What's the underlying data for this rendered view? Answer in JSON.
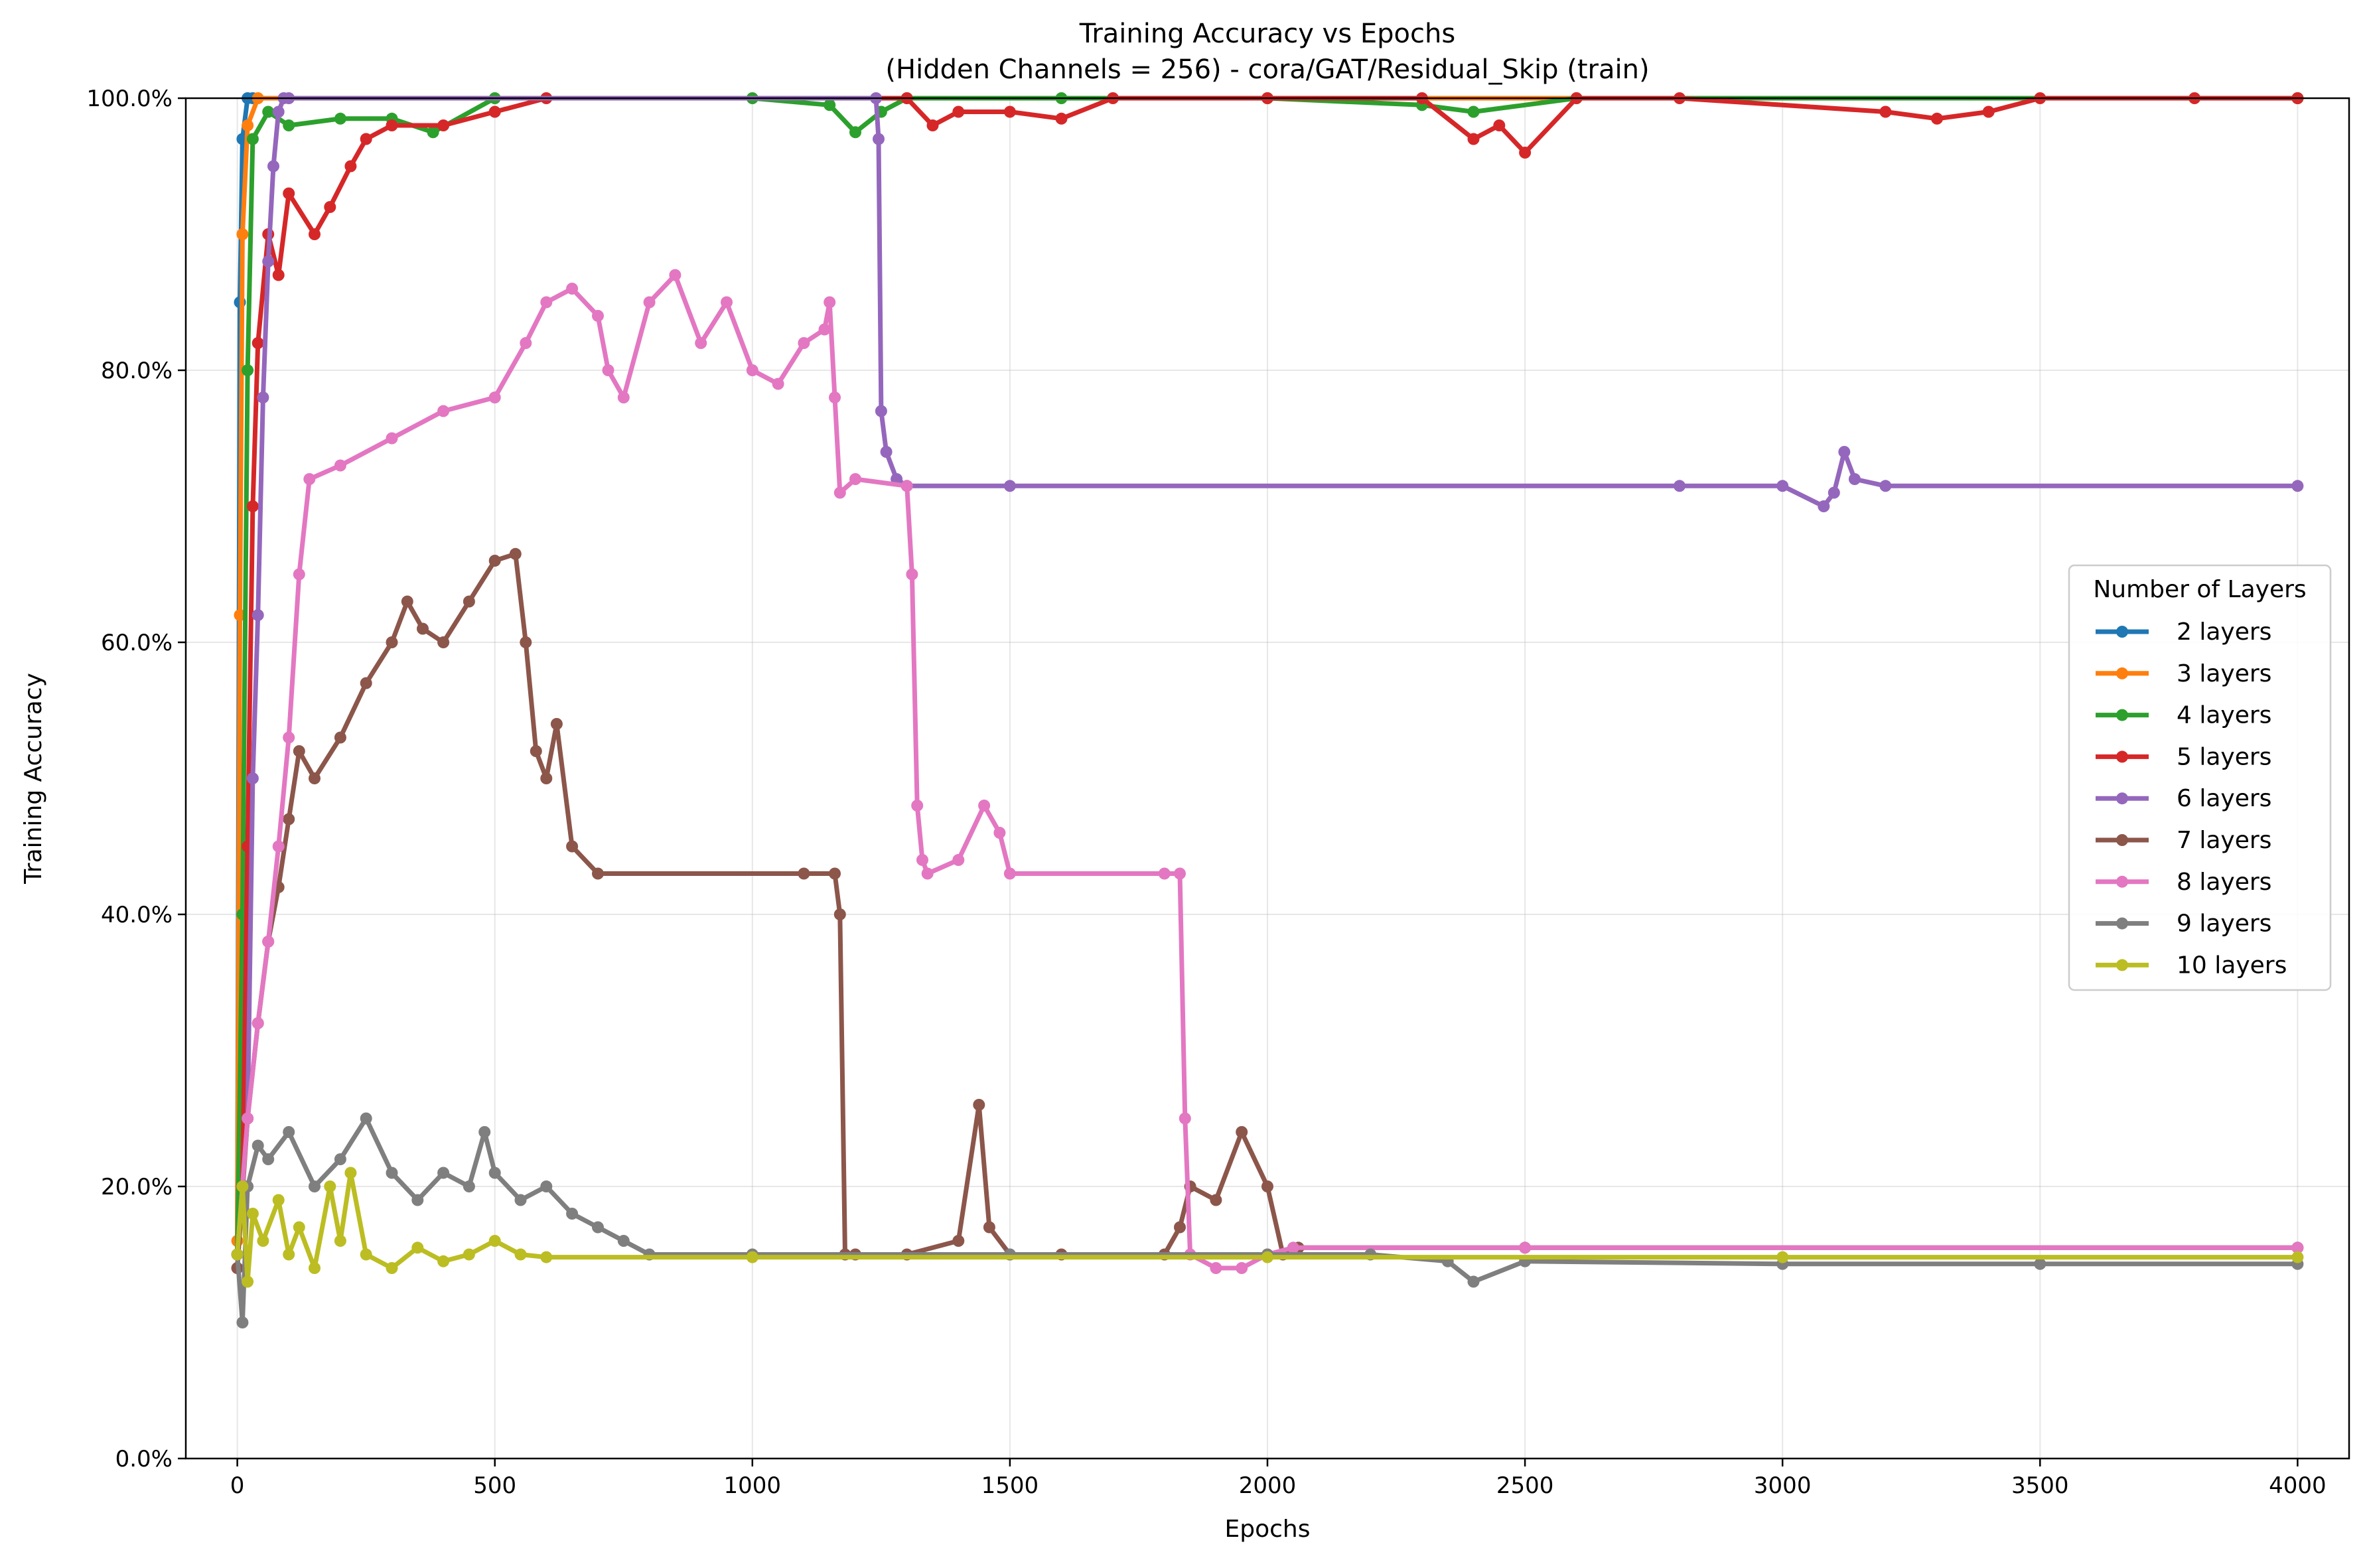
{
  "chart_data": {
    "type": "line",
    "title": "Training Accuracy vs Epochs",
    "subtitle": "(Hidden Channels = 256) - cora/GAT/Residual_Skip (train)",
    "xlabel": "Epochs",
    "ylabel": "Training Accuracy",
    "xlim": [
      -100,
      4100
    ],
    "ylim": [
      0,
      1.0
    ],
    "xticks": [
      0,
      500,
      1000,
      1500,
      2000,
      2500,
      3000,
      3500,
      4000
    ],
    "xtick_labels": [
      "0",
      "500",
      "1000",
      "1500",
      "2000",
      "2500",
      "3000",
      "3500",
      "4000"
    ],
    "yticks": [
      0,
      0.2,
      0.4,
      0.6,
      0.8,
      1.0
    ],
    "ytick_labels": [
      "0.0%",
      "20.0%",
      "40.0%",
      "60.0%",
      "80.0%",
      "100.0%"
    ],
    "grid": true,
    "legend": {
      "title": "Number of Layers",
      "placement": "center-right"
    },
    "series": [
      {
        "name": "2 layers",
        "color": "#1f77b4",
        "x": [
          0,
          5,
          10,
          20,
          30,
          4000
        ],
        "y": [
          0.15,
          0.85,
          0.97,
          1.0,
          1.0,
          1.0
        ]
      },
      {
        "name": "3 layers",
        "color": "#ff7f0e",
        "x": [
          0,
          5,
          10,
          20,
          40,
          4000
        ],
        "y": [
          0.16,
          0.62,
          0.9,
          0.98,
          1.0,
          1.0
        ]
      },
      {
        "name": "4 layers",
        "color": "#2ca02c",
        "x": [
          0,
          10,
          20,
          30,
          60,
          100,
          200,
          300,
          380,
          500,
          1000,
          1150,
          1200,
          1250,
          1300,
          1600,
          2000,
          2300,
          2400,
          2600,
          4000
        ],
        "y": [
          0.15,
          0.4,
          0.8,
          0.97,
          0.99,
          0.98,
          0.985,
          0.985,
          0.975,
          1.0,
          1.0,
          0.995,
          0.975,
          0.99,
          1.0,
          1.0,
          1.0,
          0.995,
          0.99,
          1.0,
          1.0
        ]
      },
      {
        "name": "5 layers",
        "color": "#d62728",
        "x": [
          0,
          10,
          20,
          30,
          40,
          60,
          80,
          100,
          150,
          180,
          220,
          250,
          300,
          400,
          500,
          600,
          1300,
          1350,
          1400,
          1500,
          1600,
          1700,
          2000,
          2300,
          2400,
          2450,
          2500,
          2600,
          2800,
          3200,
          3300,
          3400,
          3500,
          3800,
          4000
        ],
        "y": [
          0.14,
          0.2,
          0.45,
          0.7,
          0.82,
          0.9,
          0.87,
          0.93,
          0.9,
          0.92,
          0.95,
          0.97,
          0.98,
          0.98,
          0.99,
          1.0,
          1.0,
          0.98,
          0.99,
          0.99,
          0.985,
          1.0,
          1.0,
          1.0,
          0.97,
          0.98,
          0.96,
          1.0,
          1.0,
          0.99,
          0.985,
          0.99,
          1.0,
          1.0,
          1.0
        ]
      },
      {
        "name": "6 layers",
        "color": "#9467bd",
        "x": [
          0,
          20,
          30,
          40,
          50,
          60,
          70,
          80,
          90,
          100,
          1240,
          1245,
          1250,
          1260,
          1280,
          1300,
          1500,
          2800,
          3000,
          3080,
          3100,
          3120,
          3140,
          3200,
          4000
        ],
        "y": [
          0.15,
          0.25,
          0.5,
          0.62,
          0.78,
          0.88,
          0.95,
          0.99,
          1.0,
          1.0,
          1.0,
          0.97,
          0.77,
          0.74,
          0.72,
          0.715,
          0.715,
          0.715,
          0.715,
          0.7,
          0.71,
          0.74,
          0.72,
          0.715,
          0.715
        ]
      },
      {
        "name": "7 layers",
        "color": "#8c564b",
        "x": [
          0,
          20,
          40,
          60,
          80,
          100,
          120,
          150,
          200,
          250,
          300,
          330,
          360,
          400,
          450,
          500,
          540,
          560,
          580,
          600,
          620,
          650,
          700,
          1100,
          1160,
          1170,
          1180,
          1200,
          1300,
          1400,
          1440,
          1460,
          1500,
          1600,
          1800,
          1830,
          1850,
          1900,
          1950,
          2000,
          2030,
          2060,
          2500,
          4000
        ],
        "y": [
          0.14,
          0.25,
          0.32,
          0.38,
          0.42,
          0.47,
          0.52,
          0.5,
          0.53,
          0.57,
          0.6,
          0.63,
          0.61,
          0.6,
          0.63,
          0.66,
          0.665,
          0.6,
          0.52,
          0.5,
          0.54,
          0.45,
          0.43,
          0.43,
          0.43,
          0.4,
          0.15,
          0.15,
          0.15,
          0.16,
          0.26,
          0.17,
          0.15,
          0.15,
          0.15,
          0.17,
          0.2,
          0.19,
          0.24,
          0.2,
          0.15,
          0.155,
          0.155,
          0.155
        ]
      },
      {
        "name": "8 layers",
        "color": "#e377c2",
        "x": [
          0,
          20,
          40,
          60,
          80,
          100,
          120,
          140,
          200,
          300,
          400,
          500,
          560,
          600,
          650,
          700,
          720,
          750,
          800,
          850,
          900,
          950,
          1000,
          1050,
          1100,
          1140,
          1150,
          1160,
          1170,
          1200,
          1300,
          1310,
          1320,
          1330,
          1340,
          1400,
          1450,
          1480,
          1500,
          1800,
          1830,
          1840,
          1850,
          1900,
          1950,
          2000,
          2050,
          2500,
          4000
        ],
        "y": [
          0.15,
          0.25,
          0.32,
          0.38,
          0.45,
          0.53,
          0.65,
          0.72,
          0.73,
          0.75,
          0.77,
          0.78,
          0.82,
          0.85,
          0.86,
          0.84,
          0.8,
          0.78,
          0.85,
          0.87,
          0.82,
          0.85,
          0.8,
          0.79,
          0.82,
          0.83,
          0.85,
          0.78,
          0.71,
          0.72,
          0.715,
          0.65,
          0.48,
          0.44,
          0.43,
          0.44,
          0.48,
          0.46,
          0.43,
          0.43,
          0.43,
          0.25,
          0.15,
          0.14,
          0.14,
          0.15,
          0.155,
          0.155,
          0.155
        ]
      },
      {
        "name": "9 layers",
        "color": "#7f7f7f",
        "x": [
          0,
          10,
          20,
          40,
          60,
          100,
          150,
          200,
          250,
          300,
          350,
          400,
          450,
          480,
          500,
          550,
          600,
          650,
          700,
          750,
          800,
          1000,
          1500,
          2000,
          2200,
          2350,
          2400,
          2500,
          3000,
          3500,
          4000
        ],
        "y": [
          0.15,
          0.1,
          0.2,
          0.23,
          0.22,
          0.24,
          0.2,
          0.22,
          0.25,
          0.21,
          0.19,
          0.21,
          0.2,
          0.24,
          0.21,
          0.19,
          0.2,
          0.18,
          0.17,
          0.16,
          0.15,
          0.15,
          0.15,
          0.15,
          0.15,
          0.145,
          0.13,
          0.145,
          0.143,
          0.143,
          0.143
        ]
      },
      {
        "name": "10 layers",
        "color": "#bcbd22",
        "x": [
          0,
          10,
          20,
          30,
          50,
          80,
          100,
          120,
          150,
          180,
          200,
          220,
          250,
          300,
          350,
          400,
          450,
          500,
          550,
          600,
          1000,
          2000,
          3000,
          4000
        ],
        "y": [
          0.15,
          0.2,
          0.13,
          0.18,
          0.16,
          0.19,
          0.15,
          0.17,
          0.14,
          0.2,
          0.16,
          0.21,
          0.15,
          0.14,
          0.155,
          0.145,
          0.15,
          0.16,
          0.15,
          0.148,
          0.148,
          0.148,
          0.148,
          0.148
        ]
      }
    ]
  }
}
